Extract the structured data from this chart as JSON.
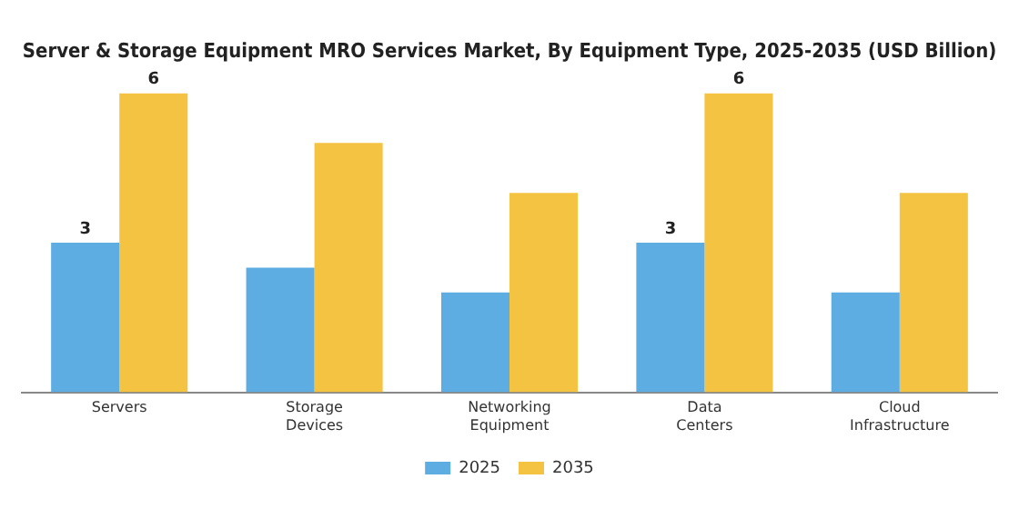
{
  "chart_data": {
    "type": "bar",
    "title": "Server & Storage Equipment MRO Services Market, By Equipment Type, 2025-2035 (USD Billion)",
    "categories": [
      "Servers",
      "Storage Devices",
      "Networking Equipment",
      "Data Centers",
      "Cloud Infrastructure"
    ],
    "series": [
      {
        "name": "2025",
        "color": "#5dade2",
        "values": [
          3,
          2.5,
          2,
          3,
          2
        ],
        "value_labels": [
          "3",
          null,
          null,
          "3",
          null
        ]
      },
      {
        "name": "2035",
        "color": "#f5c342",
        "values": [
          6,
          5,
          4,
          6,
          4
        ],
        "value_labels": [
          "6",
          null,
          null,
          "6",
          null
        ]
      }
    ],
    "legend": "bottom",
    "grid": false,
    "tick_labels": "x"
  }
}
